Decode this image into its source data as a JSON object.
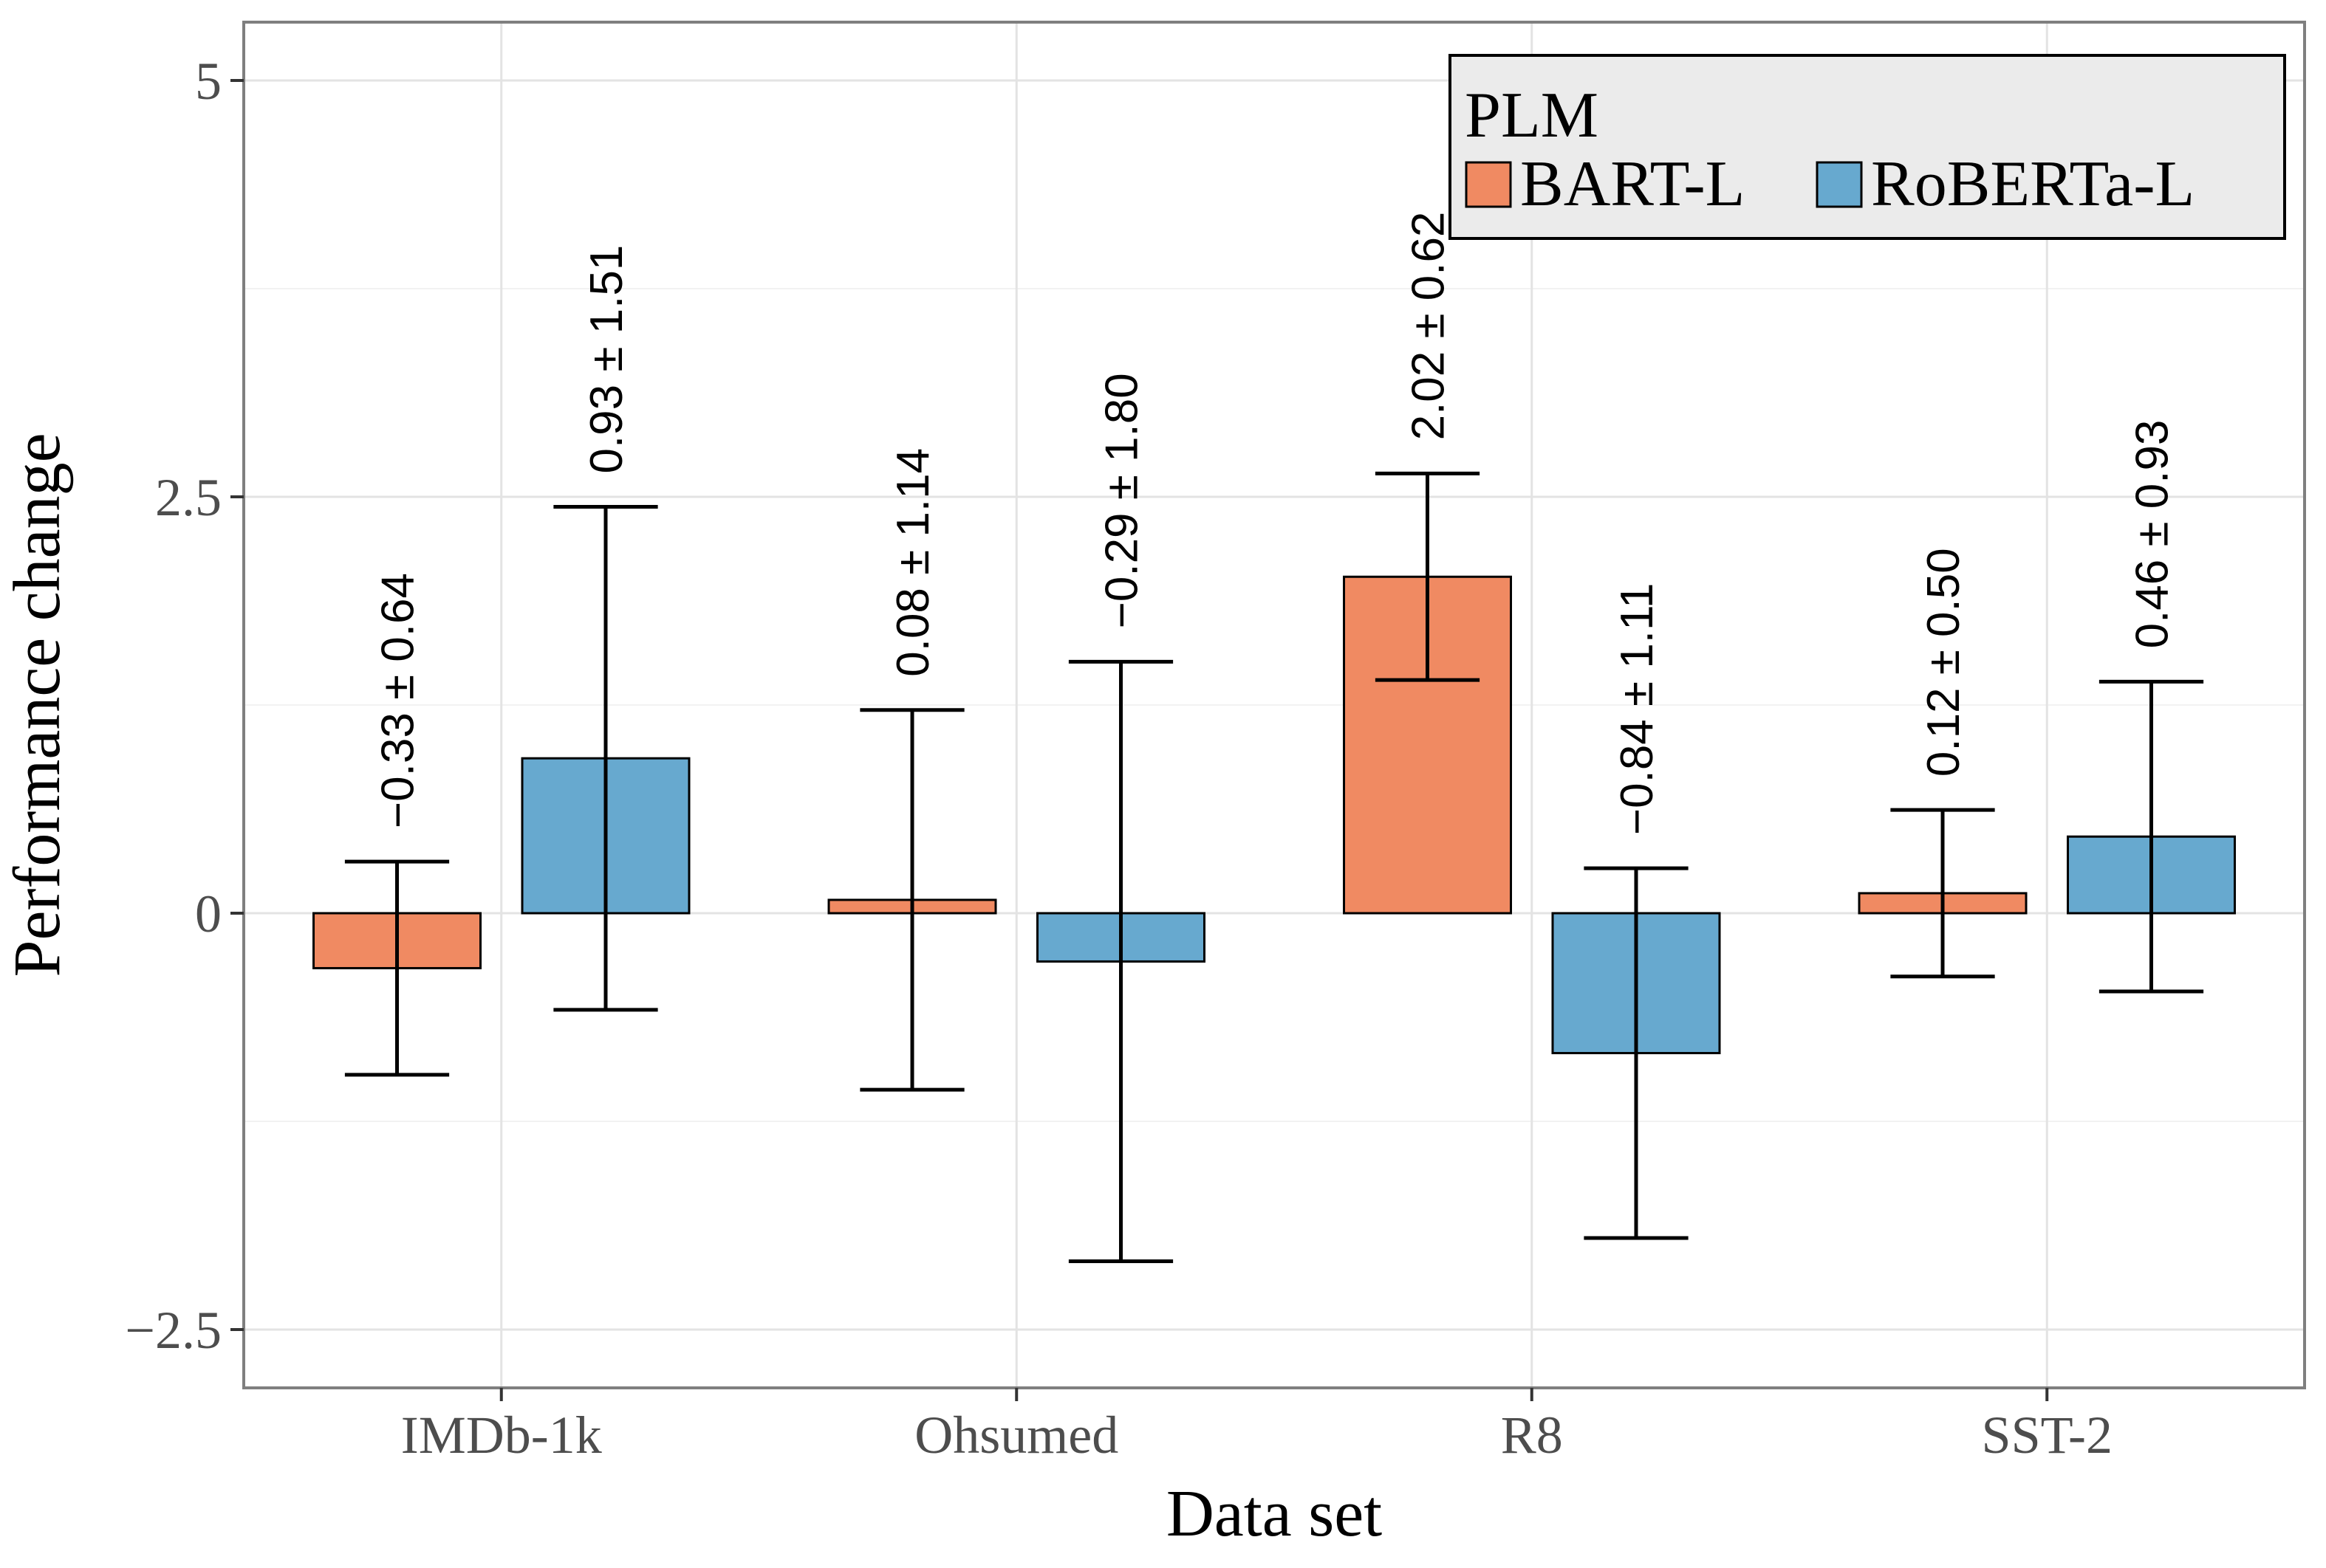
{
  "chart_data": {
    "type": "bar",
    "title": "",
    "xlabel": "Data set",
    "ylabel": "Performance change",
    "categories": [
      "IMDb-1k",
      "Ohsumed",
      "R8",
      "SST-2"
    ],
    "ylim": [
      -2.85,
      5.35
    ],
    "yticks": [
      -2.5,
      0,
      2.5,
      5
    ],
    "ytick_labels": [
      "−2.5",
      "0",
      "2.5",
      "5"
    ],
    "grid": true,
    "legend": {
      "title": "PLM",
      "placement": "top-right",
      "orientation": "horizontal"
    },
    "series": [
      {
        "name": "BART-L",
        "color": "#F08A62",
        "values": [
          -0.33,
          0.08,
          2.02,
          0.12
        ],
        "errors": [
          0.64,
          1.14,
          0.62,
          0.5
        ],
        "labels": [
          "−0.33 ± 0.64",
          "0.08 ± 1.14",
          "2.02 ± 0.62",
          "0.12 ± 0.50"
        ]
      },
      {
        "name": "RoBERTa-L",
        "color": "#67A9CF",
        "values": [
          0.93,
          -0.29,
          -0.84,
          0.46
        ],
        "errors": [
          1.51,
          1.8,
          1.11,
          0.93
        ],
        "labels": [
          "0.93 ± 1.51",
          "−0.29 ± 1.80",
          "−0.84 ± 1.11",
          "0.46 ± 0.93"
        ]
      }
    ]
  }
}
